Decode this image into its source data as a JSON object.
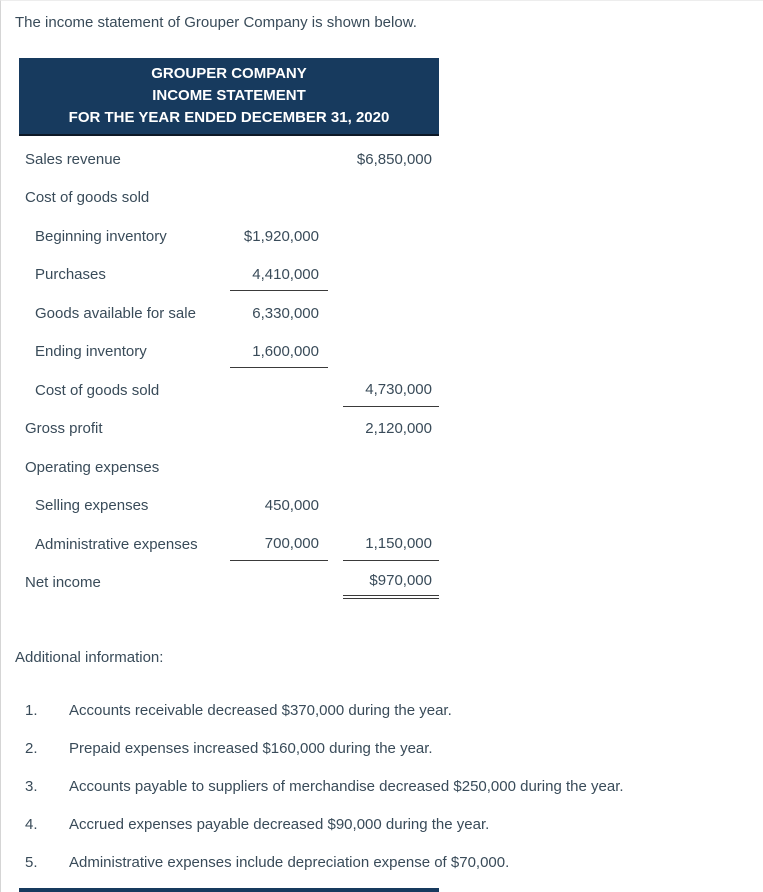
{
  "intro": "The income statement of Grouper Company is shown below.",
  "statement": {
    "title_lines": [
      "GROUPER COMPANY",
      "INCOME STATEMENT",
      "FOR THE YEAR ENDED DECEMBER 31, 2020"
    ],
    "rows": [
      {
        "label": "Sales revenue",
        "mid": "",
        "right": "$6,850,000"
      },
      {
        "label": "Cost of goods sold",
        "mid": "",
        "right": ""
      },
      {
        "label": "Beginning inventory",
        "mid": "$1,920,000",
        "right": ""
      },
      {
        "label": "Purchases",
        "mid": "4,410,000",
        "right": ""
      },
      {
        "label": "Goods available for sale",
        "mid": "6,330,000",
        "right": ""
      },
      {
        "label": "Ending inventory",
        "mid": "1,600,000",
        "right": ""
      },
      {
        "label": "Cost of goods sold",
        "mid": "",
        "right": "4,730,000"
      },
      {
        "label": "Gross profit",
        "mid": "",
        "right": "2,120,000"
      },
      {
        "label": "Operating expenses",
        "mid": "",
        "right": ""
      },
      {
        "label": "Selling expenses",
        "mid": "450,000",
        "right": ""
      },
      {
        "label": "Administrative expenses",
        "mid": "700,000",
        "right": "1,150,000"
      },
      {
        "label": "Net income",
        "mid": "",
        "right": "$970,000"
      }
    ]
  },
  "additional": {
    "heading": "Additional information:",
    "notes": [
      {
        "num": "1.",
        "text": "Accounts receivable decreased $370,000 during the year."
      },
      {
        "num": "2.",
        "text": "Prepaid expenses increased $160,000 during the year."
      },
      {
        "num": "3.",
        "text": "Accounts payable to suppliers of merchandise decreased $250,000 during the year."
      },
      {
        "num": "4.",
        "text": "Accrued expenses payable decreased $90,000 during the year."
      },
      {
        "num": "5.",
        "text": "Administrative expenses include depreciation expense of $70,000."
      }
    ]
  },
  "colors": {
    "header_bg": "#173a5e",
    "header_text": "#ffffff",
    "body_text": "#394b59",
    "rule": "#3a3a3a"
  }
}
